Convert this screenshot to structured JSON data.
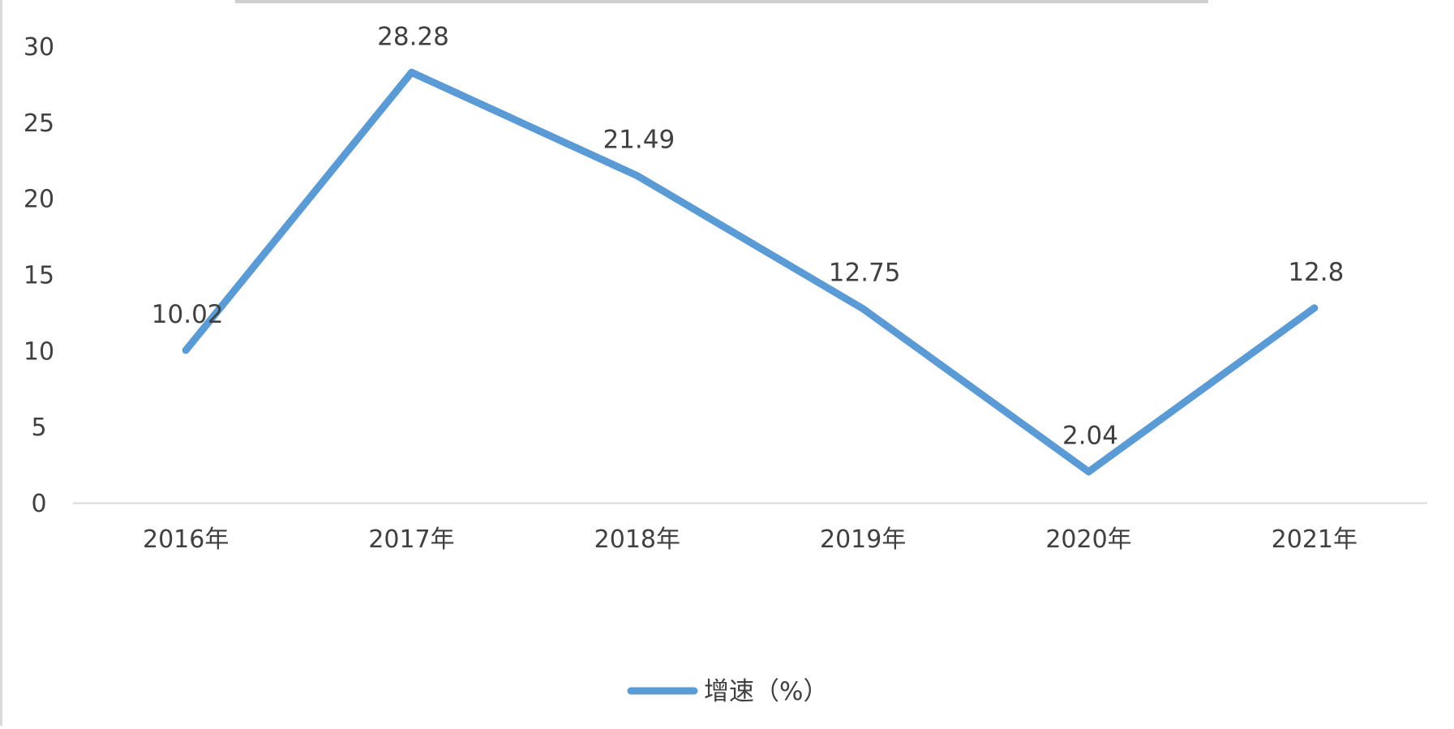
{
  "chart_data": {
    "type": "line",
    "categories": [
      "2016年",
      "2017年",
      "2018年",
      "2019年",
      "2020年",
      "2021年"
    ],
    "series": [
      {
        "name": "增速（%）",
        "values": [
          10.02,
          28.28,
          21.49,
          12.75,
          2.04,
          12.8
        ],
        "labels": [
          "10.02",
          "28.28",
          "21.49",
          "12.75",
          "2.04",
          "12.8"
        ],
        "color": "#5b9bd5"
      }
    ],
    "ylim": [
      0,
      30
    ],
    "yticks": [
      0,
      5,
      10,
      15,
      20,
      25,
      30
    ],
    "xlabel": "",
    "ylabel": "",
    "grid": false,
    "legend_position": "bottom"
  }
}
